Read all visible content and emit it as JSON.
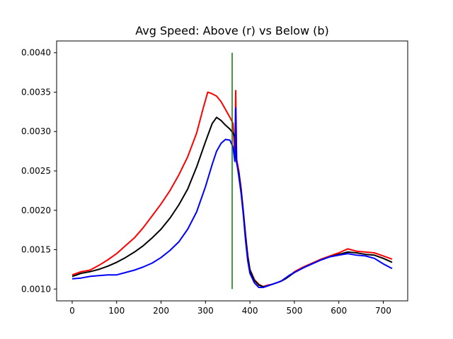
{
  "chart_data": {
    "type": "line",
    "title": "Avg Speed: Above (r) vs Below (b)",
    "xlabel": "",
    "ylabel": "",
    "xlim": [
      -35,
      755
    ],
    "ylim": [
      0.00085,
      0.00415
    ],
    "xticks": [
      0,
      100,
      200,
      300,
      400,
      500,
      600,
      700
    ],
    "yticks": [
      0.001,
      0.0015,
      0.002,
      0.0025,
      0.003,
      0.0035,
      0.004
    ],
    "ytick_labels": [
      "0.0010",
      "0.0015",
      "0.0020",
      "0.0025",
      "0.0030",
      "0.0035",
      "0.0040"
    ],
    "grid": false,
    "series": [
      {
        "color": "#ff0000",
        "points": [
          [
            0,
            0.00118
          ],
          [
            20,
            0.00122
          ],
          [
            40,
            0.00124
          ],
          [
            60,
            0.0013
          ],
          [
            80,
            0.00137
          ],
          [
            100,
            0.00145
          ],
          [
            120,
            0.00155
          ],
          [
            140,
            0.00165
          ],
          [
            160,
            0.00178
          ],
          [
            180,
            0.00193
          ],
          [
            200,
            0.00208
          ],
          [
            220,
            0.00225
          ],
          [
            240,
            0.00245
          ],
          [
            260,
            0.00268
          ],
          [
            280,
            0.00298
          ],
          [
            295,
            0.0033
          ],
          [
            305,
            0.0035
          ],
          [
            315,
            0.00348
          ],
          [
            325,
            0.00345
          ],
          [
            335,
            0.00338
          ],
          [
            345,
            0.00328
          ],
          [
            355,
            0.00318
          ],
          [
            362,
            0.0031
          ],
          [
            366,
            0.00265
          ],
          [
            368,
            0.00352
          ],
          [
            370,
            0.00265
          ],
          [
            375,
            0.0025
          ],
          [
            380,
            0.00228
          ],
          [
            385,
            0.002
          ],
          [
            390,
            0.0017
          ],
          [
            395,
            0.00143
          ],
          [
            400,
            0.00125
          ],
          [
            410,
            0.00112
          ],
          [
            420,
            0.00106
          ],
          [
            430,
            0.00103
          ],
          [
            440,
            0.00105
          ],
          [
            450,
            0.00106
          ],
          [
            460,
            0.00108
          ],
          [
            470,
            0.0011
          ],
          [
            480,
            0.00113
          ],
          [
            490,
            0.00117
          ],
          [
            500,
            0.00122
          ],
          [
            520,
            0.00128
          ],
          [
            540,
            0.00133
          ],
          [
            560,
            0.00138
          ],
          [
            580,
            0.00142
          ],
          [
            600,
            0.00146
          ],
          [
            620,
            0.00151
          ],
          [
            640,
            0.00148
          ],
          [
            660,
            0.00147
          ],
          [
            680,
            0.00146
          ],
          [
            700,
            0.00142
          ],
          [
            720,
            0.00138
          ]
        ]
      },
      {
        "color": "#000000",
        "points": [
          [
            0,
            0.00116
          ],
          [
            20,
            0.0012
          ],
          [
            40,
            0.00122
          ],
          [
            60,
            0.00125
          ],
          [
            80,
            0.00129
          ],
          [
            100,
            0.00134
          ],
          [
            120,
            0.0014
          ],
          [
            140,
            0.00147
          ],
          [
            160,
            0.00155
          ],
          [
            180,
            0.00165
          ],
          [
            200,
            0.00176
          ],
          [
            220,
            0.0019
          ],
          [
            240,
            0.00207
          ],
          [
            260,
            0.00227
          ],
          [
            280,
            0.00255
          ],
          [
            300,
            0.00287
          ],
          [
            315,
            0.0031
          ],
          [
            325,
            0.00318
          ],
          [
            335,
            0.00314
          ],
          [
            345,
            0.00308
          ],
          [
            355,
            0.00303
          ],
          [
            362,
            0.00298
          ],
          [
            366,
            0.00293
          ],
          [
            370,
            0.0026
          ],
          [
            375,
            0.00247
          ],
          [
            380,
            0.00225
          ],
          [
            385,
            0.00198
          ],
          [
            390,
            0.00168
          ],
          [
            395,
            0.00141
          ],
          [
            400,
            0.00124
          ],
          [
            410,
            0.00111
          ],
          [
            420,
            0.00105
          ],
          [
            430,
            0.00103
          ],
          [
            440,
            0.00104
          ],
          [
            450,
            0.00106
          ],
          [
            460,
            0.00108
          ],
          [
            470,
            0.0011
          ],
          [
            480,
            0.00113
          ],
          [
            490,
            0.00117
          ],
          [
            500,
            0.00121
          ],
          [
            520,
            0.00127
          ],
          [
            540,
            0.00132
          ],
          [
            560,
            0.00137
          ],
          [
            580,
            0.00141
          ],
          [
            600,
            0.00144
          ],
          [
            620,
            0.00147
          ],
          [
            640,
            0.00146
          ],
          [
            660,
            0.00144
          ],
          [
            680,
            0.00143
          ],
          [
            700,
            0.00139
          ],
          [
            720,
            0.00134
          ]
        ]
      },
      {
        "color": "#0000ff",
        "points": [
          [
            0,
            0.00113
          ],
          [
            20,
            0.00114
          ],
          [
            40,
            0.00116
          ],
          [
            60,
            0.00117
          ],
          [
            80,
            0.00118
          ],
          [
            100,
            0.00118
          ],
          [
            120,
            0.00121
          ],
          [
            140,
            0.00124
          ],
          [
            160,
            0.00128
          ],
          [
            180,
            0.00133
          ],
          [
            200,
            0.0014
          ],
          [
            220,
            0.00149
          ],
          [
            240,
            0.0016
          ],
          [
            260,
            0.00176
          ],
          [
            280,
            0.00198
          ],
          [
            300,
            0.0023
          ],
          [
            315,
            0.00258
          ],
          [
            325,
            0.00275
          ],
          [
            335,
            0.00285
          ],
          [
            345,
            0.0029
          ],
          [
            355,
            0.00289
          ],
          [
            362,
            0.0028
          ],
          [
            366,
            0.00262
          ],
          [
            368,
            0.0033
          ],
          [
            370,
            0.00262
          ],
          [
            375,
            0.00243
          ],
          [
            380,
            0.00222
          ],
          [
            385,
            0.00195
          ],
          [
            390,
            0.00163
          ],
          [
            395,
            0.00136
          ],
          [
            400,
            0.0012
          ],
          [
            410,
            0.00108
          ],
          [
            420,
            0.00102
          ],
          [
            430,
            0.00102
          ],
          [
            440,
            0.00104
          ],
          [
            450,
            0.00106
          ],
          [
            460,
            0.00108
          ],
          [
            470,
            0.0011
          ],
          [
            480,
            0.00114
          ],
          [
            490,
            0.00118
          ],
          [
            500,
            0.00121
          ],
          [
            520,
            0.00127
          ],
          [
            540,
            0.00132
          ],
          [
            560,
            0.00137
          ],
          [
            580,
            0.00141
          ],
          [
            600,
            0.00143
          ],
          [
            620,
            0.00145
          ],
          [
            640,
            0.00143
          ],
          [
            660,
            0.00142
          ],
          [
            680,
            0.00139
          ],
          [
            700,
            0.00132
          ],
          [
            720,
            0.00126
          ]
        ]
      }
    ],
    "vline": {
      "x": 360,
      "y_from": 0.001,
      "y_to": 0.004,
      "color": "#008000"
    }
  }
}
